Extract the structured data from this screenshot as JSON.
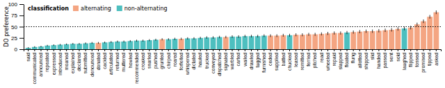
{
  "chart_data": {
    "type": "bar",
    "ylabel": "DO preference",
    "categories": [
      "said",
      "communicated",
      "announced",
      "repeated",
      "expressed",
      "introduced",
      "moaned",
      "explained",
      "declared",
      "submitted",
      "denounced",
      "donated",
      "cackled",
      "articulated",
      "returned",
      "muttered",
      "howled",
      "recommended",
      "croaked",
      "snarled",
      "pushed",
      "grunted",
      "chirped",
      "roared",
      "forfeited",
      "whispered",
      "dictated",
      "hauled",
      "trucked",
      "conveyed",
      "dispatched",
      "signaled",
      "warbled",
      "carted",
      "wailed",
      "drawled",
      "tugged",
      "furnished",
      "ceded",
      "supplied",
      "batted",
      "chucked",
      "leased",
      "remitted",
      "ferried",
      "pitched",
      "read",
      "wheeled",
      "repaid",
      "slapped",
      "floated",
      "flung",
      "allotted",
      "shipped",
      "slid",
      "handed",
      "passed",
      "sent",
      "sold",
      "laughed",
      "flipped",
      "tossed",
      "promised",
      "tipped",
      "asked"
    ],
    "values": [
      3,
      5,
      6,
      8,
      9,
      10,
      11,
      12,
      12,
      13,
      14,
      14,
      15,
      16,
      17,
      17,
      18,
      19,
      19,
      20,
      21,
      22,
      22,
      23,
      23,
      24,
      24,
      25,
      26,
      26,
      27,
      27,
      28,
      28,
      29,
      29,
      29,
      30,
      30,
      30,
      31,
      31,
      32,
      32,
      33,
      33,
      34,
      35,
      36,
      36,
      37,
      38,
      39,
      40,
      40,
      41,
      42,
      43,
      45,
      46,
      48,
      55,
      62,
      72,
      82
    ],
    "errors": [
      1.5,
      1.54,
      1.58,
      1.62,
      1.66,
      1.7,
      1.74,
      1.78,
      1.82,
      1.86,
      1.9,
      1.94,
      1.98,
      2.02,
      2.06,
      2.1,
      2.14,
      2.18,
      2.22,
      2.26,
      2.3,
      2.34,
      2.38,
      2.42,
      2.46,
      2.5,
      2.54,
      2.58,
      2.62,
      2.66,
      2.7,
      2.74,
      2.78,
      2.82,
      2.86,
      2.9,
      2.94,
      2.98,
      3.02,
      3.06,
      3.1,
      3.14,
      3.18,
      3.22,
      3.26,
      3.3,
      3.34,
      3.38,
      3.42,
      3.46,
      3.5,
      3.54,
      3.58,
      3.62,
      3.66,
      3.7,
      3.74,
      3.78,
      3.82,
      3.86,
      3.9,
      3.94,
      3.98,
      4.02,
      4.06
    ],
    "colors": [
      "#4DBFBF",
      "#4DBFBF",
      "#4DBFBF",
      "#4DBFBF",
      "#4DBFBF",
      "#4DBFBF",
      "#4DBFBF",
      "#4DBFBF",
      "#4DBFBF",
      "#4DBFBF",
      "#4DBFBF",
      "#F4A582",
      "#4DBFBF",
      "#4DBFBF",
      "#4DBFBF",
      "#4DBFBF",
      "#4DBFBF",
      "#4DBFBF",
      "#4DBFBF",
      "#4DBFBF",
      "#4DBFBF",
      "#F4A582",
      "#4DBFBF",
      "#4DBFBF",
      "#F4A582",
      "#4DBFBF",
      "#4DBFBF",
      "#4DBFBF",
      "#4DBFBF",
      "#4DBFBF",
      "#4DBFBF",
      "#F4A582",
      "#4DBFBF",
      "#4DBFBF",
      "#4DBFBF",
      "#4DBFBF",
      "#4DBFBF",
      "#4DBFBF",
      "#F4A582",
      "#F4A582",
      "#F4A582",
      "#4DBFBF",
      "#F4A582",
      "#F4A582",
      "#F4A582",
      "#F4A582",
      "#F4A582",
      "#F4A582",
      "#F4A582",
      "#F4A582",
      "#4DBFBF",
      "#F4A582",
      "#F4A582",
      "#F4A582",
      "#F4A582",
      "#F4A582",
      "#F4A582",
      "#F4A582",
      "#F4A582",
      "#4DBFBF",
      "#F4A582",
      "#F4A582",
      "#F4A582",
      "#F4A582",
      "#F4A582"
    ],
    "reference_line": 50,
    "ylim": [
      0,
      100
    ],
    "yticks": [
      0,
      25,
      50,
      75,
      100
    ],
    "grid": false,
    "legend": "upper left",
    "legend_title": "classification",
    "legend_items": [
      {
        "name": "alternating",
        "color": "#F4A582"
      },
      {
        "name": "non-alternating",
        "color": "#4DBFBF"
      }
    ]
  }
}
